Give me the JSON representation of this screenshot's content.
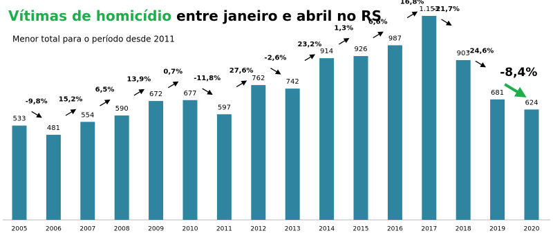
{
  "chart_data": {
    "type": "bar",
    "title_highlight": "Vítimas de homicídio",
    "title_rest": "entre janeiro e abril no RS",
    "subtitle": "Menor total para o período desde 2011",
    "categories": [
      "2005",
      "2006",
      "2007",
      "2008",
      "2009",
      "2010",
      "2011",
      "2012",
      "2013",
      "2014",
      "2015",
      "2016",
      "2017",
      "2018",
      "2019",
      "2020"
    ],
    "values": [
      533,
      481,
      554,
      590,
      672,
      677,
      597,
      762,
      742,
      914,
      926,
      987,
      1153,
      903,
      681,
      624
    ],
    "value_labels": [
      "533",
      "481",
      "554",
      "590",
      "672",
      "677",
      "597",
      "762",
      "742",
      "914",
      "926",
      "987",
      "1.153",
      "903",
      "681",
      "624"
    ],
    "changes": [
      "-9,8%",
      "15,2%",
      "6,5%",
      "13,9%",
      "0,7%",
      "-11,8%",
      "27,6%",
      "-2,6%",
      "23,2%",
      "1,3%",
      "6,6%",
      "16,8%",
      "-21,7%",
      "-24,6%",
      "-8,4%"
    ],
    "color": "#2f859f",
    "change_color": "#2eb4dc",
    "highlight_color": "#1fae4b"
  }
}
